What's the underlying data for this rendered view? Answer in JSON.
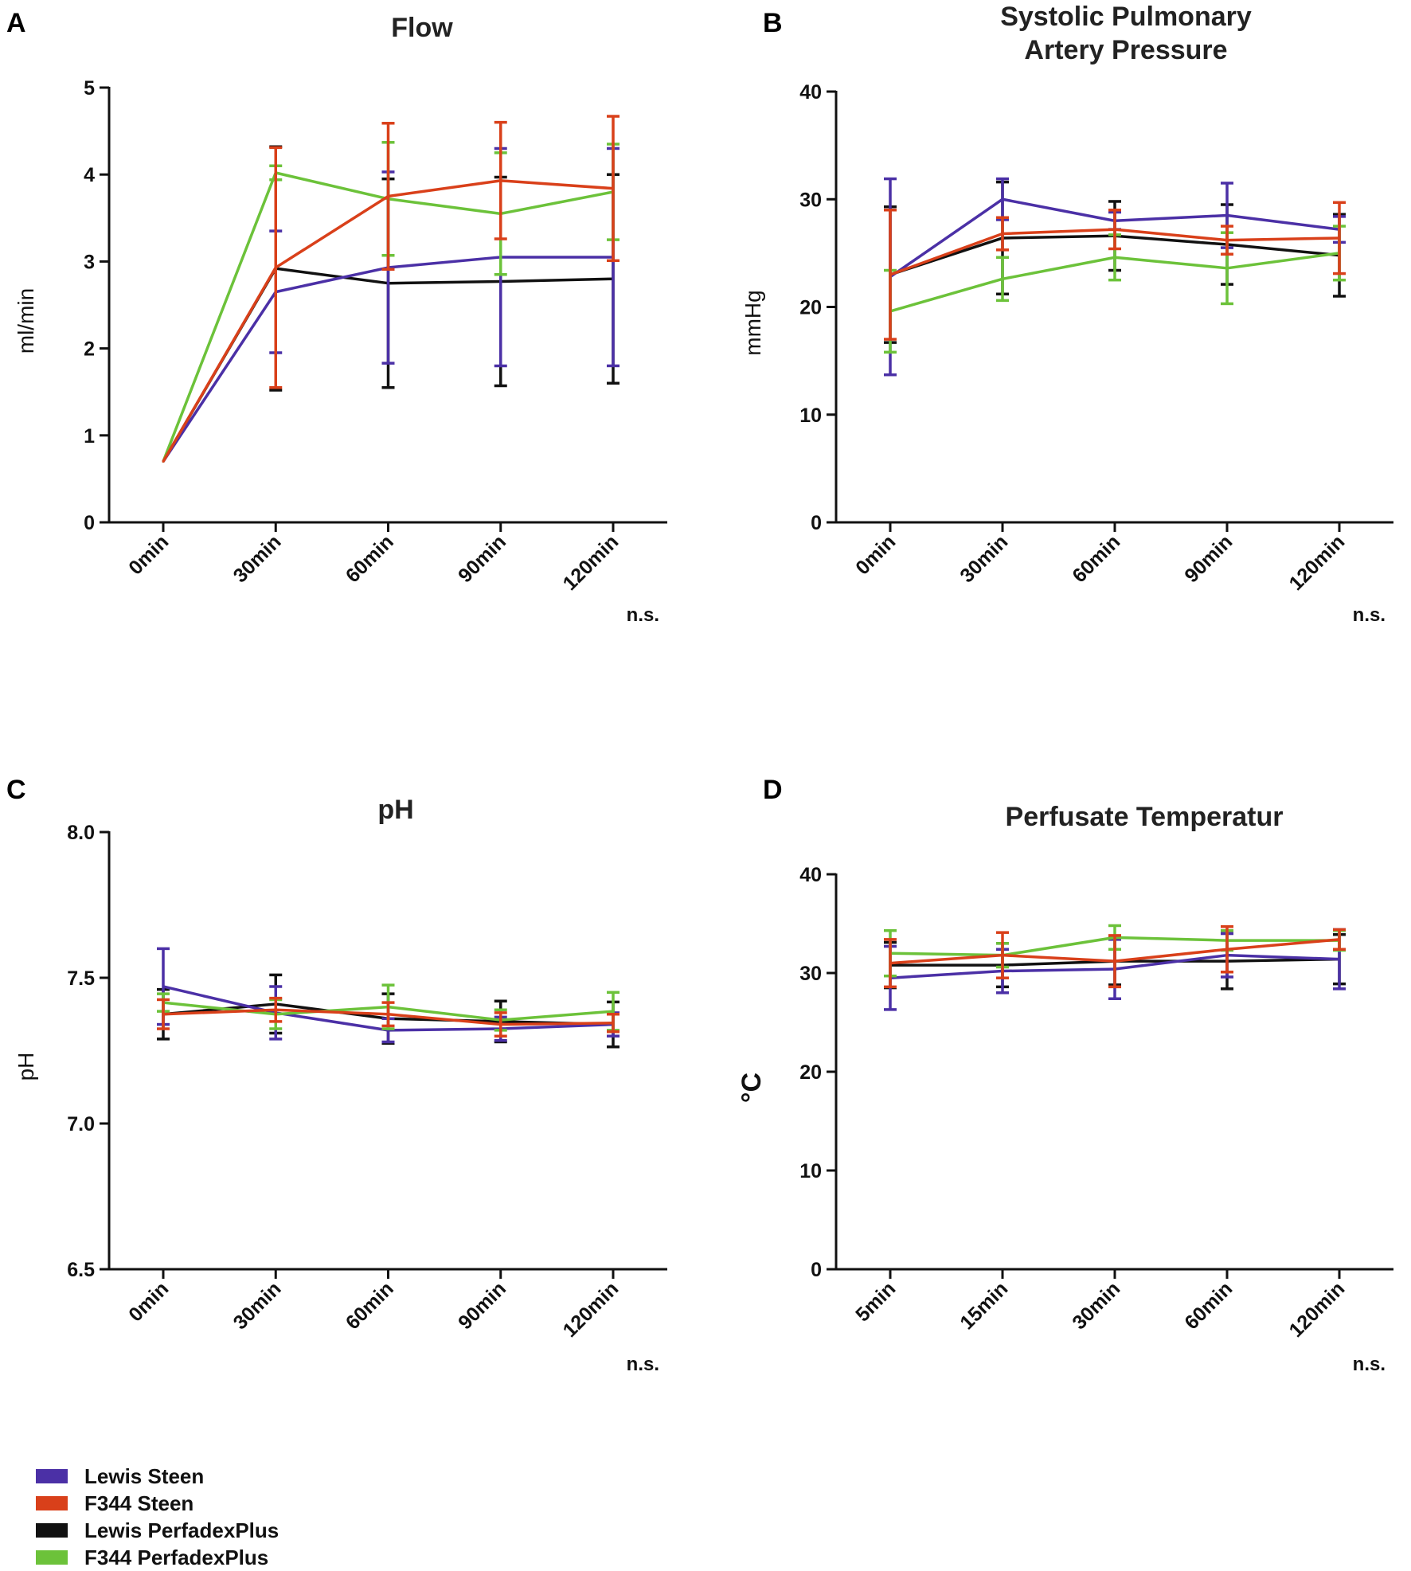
{
  "legend": [
    {
      "name": "Lewis Steen",
      "color": "#4b30a6"
    },
    {
      "name": "F344 Steen",
      "color": "#d9401a"
    },
    {
      "name": "Lewis PerfadexPlus",
      "color": "#111111"
    },
    {
      "name": "F344 PerfadexPlus",
      "color": "#6cc23a"
    }
  ],
  "chart_data": [
    {
      "panel": "A",
      "type": "line",
      "title": [
        "Flow"
      ],
      "ylabel": "ml/min",
      "ylabel_bold": false,
      "ylim": [
        0,
        5
      ],
      "yticks": [
        0,
        1,
        2,
        3,
        4,
        5
      ],
      "ytick_labels": [
        "0",
        "1",
        "2",
        "3",
        "4",
        "5"
      ],
      "categories": [
        "0min",
        "30min",
        "60min",
        "90min",
        "120min"
      ],
      "note": "n.s.",
      "series": [
        {
          "name": "Lewis Steen",
          "values": [
            0.7,
            2.65,
            2.93,
            3.05,
            3.05
          ],
          "err": [
            0,
            0.7,
            1.1,
            1.25,
            1.25
          ]
        },
        {
          "name": "F344 Steen",
          "values": [
            0.7,
            2.93,
            3.75,
            3.93,
            3.84
          ],
          "err": [
            0,
            1.38,
            0.84,
            0.67,
            0.83
          ]
        },
        {
          "name": "Lewis PerfadexPlus",
          "values": [
            0.7,
            2.92,
            2.75,
            2.77,
            2.8
          ],
          "err": [
            0,
            1.4,
            1.2,
            1.2,
            1.2
          ]
        },
        {
          "name": "F344 PerfadexPlus",
          "values": [
            0.7,
            4.02,
            3.72,
            3.55,
            3.8
          ],
          "err": [
            0,
            0.08,
            0.65,
            0.7,
            0.55
          ]
        }
      ]
    },
    {
      "panel": "B",
      "type": "line",
      "title": [
        "Systolic Pulmonary",
        "Artery Pressure"
      ],
      "ylabel": "mmHg",
      "ylabel_bold": false,
      "ylim": [
        0,
        40
      ],
      "yticks": [
        0,
        10,
        20,
        30,
        40
      ],
      "ytick_labels": [
        "0",
        "10",
        "20",
        "30",
        "40"
      ],
      "categories": [
        "0min",
        "30min",
        "60min",
        "90min",
        "120min"
      ],
      "note": "n.s.",
      "series": [
        {
          "name": "Lewis Steen",
          "values": [
            22.8,
            30.0,
            28.0,
            28.5,
            27.2
          ],
          "err": [
            9.1,
            1.9,
            0.8,
            3.0,
            1.2
          ]
        },
        {
          "name": "F344 Steen",
          "values": [
            23.0,
            26.8,
            27.2,
            26.2,
            26.4
          ],
          "err": [
            6.0,
            1.5,
            1.8,
            1.3,
            3.3
          ]
        },
        {
          "name": "Lewis PerfadexPlus",
          "values": [
            23.0,
            26.4,
            26.6,
            25.8,
            24.8
          ],
          "err": [
            6.3,
            5.2,
            3.2,
            3.7,
            3.8
          ]
        },
        {
          "name": "F344 PerfadexPlus",
          "values": [
            19.6,
            22.6,
            24.6,
            23.6,
            25.0
          ],
          "err": [
            3.8,
            2.0,
            2.1,
            3.3,
            2.5
          ]
        }
      ]
    },
    {
      "panel": "C",
      "type": "line",
      "title": [
        "pH"
      ],
      "ylabel": "pH",
      "ylabel_bold": false,
      "ylim": [
        6.5,
        8.0
      ],
      "yticks": [
        6.5,
        7.0,
        7.5,
        8.0
      ],
      "ytick_labels": [
        "6.5",
        "7.0",
        "7.5",
        "8.0"
      ],
      "categories": [
        "0min",
        "30min",
        "60min",
        "90min",
        "120min"
      ],
      "note": "n.s.",
      "series": [
        {
          "name": "Lewis Steen",
          "values": [
            7.47,
            7.38,
            7.32,
            7.325,
            7.34
          ],
          "err": [
            0.13,
            0.09,
            0.04,
            0.04,
            0.04
          ]
        },
        {
          "name": "F344 Steen",
          "values": [
            7.375,
            7.39,
            7.375,
            7.34,
            7.345
          ],
          "err": [
            0.05,
            0.04,
            0.04,
            0.04,
            0.03
          ]
        },
        {
          "name": "Lewis PerfadexPlus",
          "values": [
            7.375,
            7.41,
            7.36,
            7.35,
            7.34
          ],
          "err": [
            0.085,
            0.1,
            0.085,
            0.07,
            0.077
          ]
        },
        {
          "name": "F344 PerfadexPlus",
          "values": [
            7.415,
            7.375,
            7.4,
            7.355,
            7.385
          ],
          "err": [
            0.03,
            0.05,
            0.075,
            0.035,
            0.065
          ]
        }
      ]
    },
    {
      "panel": "D",
      "type": "line",
      "title": [
        "Perfusate Temperatur"
      ],
      "ylabel": "°C",
      "ylabel_bold": true,
      "ylim": [
        0,
        40
      ],
      "yticks": [
        0,
        10,
        20,
        30,
        40
      ],
      "ytick_labels": [
        "0",
        "10",
        "20",
        "30",
        "40"
      ],
      "categories": [
        "5min",
        "15min",
        "30min",
        "60min",
        "120min"
      ],
      "note": "n.s.",
      "series": [
        {
          "name": "Lewis Steen",
          "values": [
            29.5,
            30.2,
            30.4,
            31.8,
            31.4
          ],
          "err": [
            3.2,
            2.2,
            3.0,
            2.2,
            3.0
          ]
        },
        {
          "name": "F344 Steen",
          "values": [
            31.0,
            31.8,
            31.2,
            32.4,
            33.4
          ],
          "err": [
            2.4,
            2.3,
            2.6,
            2.3,
            1.0
          ]
        },
        {
          "name": "Lewis PerfadexPlus",
          "values": [
            30.8,
            30.8,
            31.2,
            31.2,
            31.4
          ],
          "err": [
            2.3,
            2.2,
            2.4,
            2.8,
            2.5
          ]
        },
        {
          "name": "F344 PerfadexPlus",
          "values": [
            32.0,
            31.8,
            33.6,
            33.3,
            33.3
          ],
          "err": [
            2.3,
            1.2,
            1.2,
            1.0,
            1.0
          ]
        }
      ]
    }
  ]
}
